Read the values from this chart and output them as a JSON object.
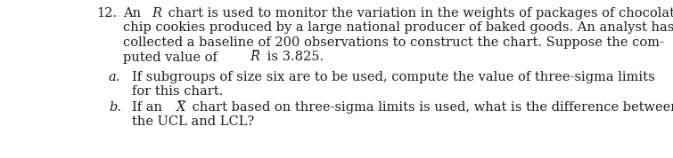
{
  "number": "12.",
  "line1a": "An ",
  "line1b": "R",
  "line1c": " chart is used to monitor the variation in the weights of packages of chocolate",
  "line2": "chip cookies produced by a large national producer of baked goods. An analyst has",
  "line3": "collected a baseline of 200 observations to construct the chart. Suppose the com-",
  "line4a": "puted value of ",
  "line4b": "R̅",
  "line4c": " is 3.825.",
  "label_a": "a.",
  "line_a1": "If subgroups of size six are to be used, compute the value of three-sigma limits",
  "line_a2": "for this chart.",
  "label_b": "b.",
  "line_b1a": "If an ",
  "line_b1b": "X̅",
  "line_b1c": " chart based on three-sigma limits is used, what is the difference between",
  "line_b2": "the UCL and LCL?",
  "bg_color": "#ffffff",
  "text_color": "#231f20",
  "font_size": 10.5
}
